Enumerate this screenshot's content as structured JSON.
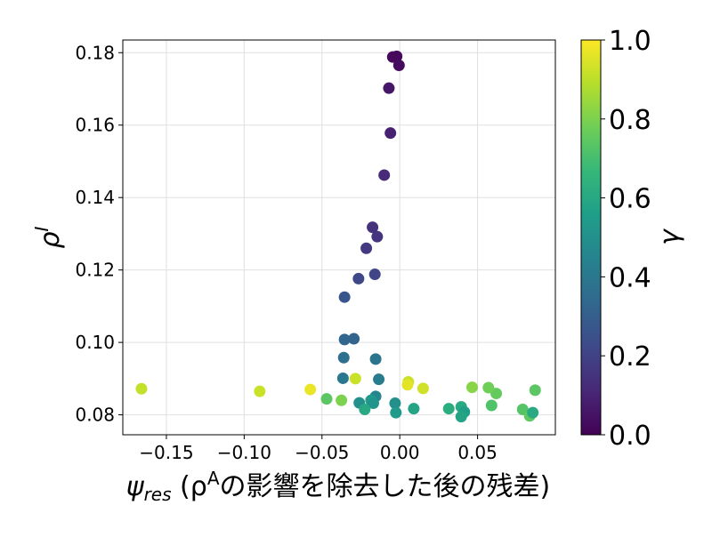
{
  "chart_data": {
    "type": "scatter",
    "title": "",
    "xlabel": "ψ_res (ρ^Aの影響を除去した後の残差)",
    "xlabel_parts": {
      "symbol": "ψ",
      "subscript": "res",
      "paren_open": " (ρ",
      "superscript": "A",
      "rest": "の影響を除去した後の残差)"
    },
    "ylabel": "ρ^I",
    "ylabel_parts": {
      "symbol": "ρ",
      "superscript": "I"
    },
    "colorbar_label": "γ",
    "xlim": [
      -0.178,
      0.1
    ],
    "ylim": [
      0.0745,
      0.1835
    ],
    "xticks": [
      -0.15,
      -0.1,
      -0.05,
      0.0,
      0.05
    ],
    "xtick_labels": [
      "−0.15",
      "−0.10",
      "−0.05",
      "0.00",
      "0.05"
    ],
    "yticks": [
      0.08,
      0.1,
      0.12,
      0.14,
      0.16,
      0.18
    ],
    "ytick_labels": [
      "0.08",
      "0.10",
      "0.12",
      "0.14",
      "0.16",
      "0.18"
    ],
    "colorbar_ticks": [
      0.0,
      0.2,
      0.4,
      0.6,
      0.8,
      1.0
    ],
    "colorbar_tick_labels": [
      "0.0",
      "0.2",
      "0.4",
      "0.6",
      "0.8",
      "1.0"
    ],
    "colormap": "viridis",
    "colormap_stops": [
      "#440154",
      "#482878",
      "#3e4989",
      "#31688e",
      "#26828e",
      "#1f9e89",
      "#35b779",
      "#6ece58",
      "#b5de2b",
      "#fde725"
    ],
    "grid": true,
    "points": [
      {
        "x": -0.002,
        "y": 0.179,
        "c": 0.02
      },
      {
        "x": -0.0045,
        "y": 0.1788,
        "c": 0.02
      },
      {
        "x": -0.0005,
        "y": 0.1765,
        "c": 0.03
      },
      {
        "x": -0.007,
        "y": 0.1702,
        "c": 0.06
      },
      {
        "x": -0.006,
        "y": 0.1578,
        "c": 0.09
      },
      {
        "x": -0.01,
        "y": 0.1462,
        "c": 0.12
      },
      {
        "x": -0.0175,
        "y": 0.1318,
        "c": 0.14
      },
      {
        "x": -0.0145,
        "y": 0.1292,
        "c": 0.15
      },
      {
        "x": -0.0215,
        "y": 0.126,
        "c": 0.17
      },
      {
        "x": -0.016,
        "y": 0.1188,
        "c": 0.21
      },
      {
        "x": -0.0265,
        "y": 0.1176,
        "c": 0.22
      },
      {
        "x": -0.0355,
        "y": 0.1125,
        "c": 0.27
      },
      {
        "x": -0.0355,
        "y": 0.1008,
        "c": 0.33
      },
      {
        "x": -0.0295,
        "y": 0.101,
        "c": 0.32
      },
      {
        "x": -0.036,
        "y": 0.0958,
        "c": 0.36
      },
      {
        "x": -0.0155,
        "y": 0.0954,
        "c": 0.38
      },
      {
        "x": -0.0365,
        "y": 0.0901,
        "c": 0.4
      },
      {
        "x": -0.0135,
        "y": 0.0898,
        "c": 0.42
      },
      {
        "x": -0.0155,
        "y": 0.0851,
        "c": 0.46
      },
      {
        "x": -0.026,
        "y": 0.0833,
        "c": 0.5
      },
      {
        "x": -0.0185,
        "y": 0.084,
        "c": 0.54
      },
      {
        "x": -0.017,
        "y": 0.0832,
        "c": 0.52
      },
      {
        "x": -0.0225,
        "y": 0.0815,
        "c": 0.6
      },
      {
        "x": -0.003,
        "y": 0.0832,
        "c": 0.5
      },
      {
        "x": -0.0025,
        "y": 0.0806,
        "c": 0.54
      },
      {
        "x": 0.009,
        "y": 0.0817,
        "c": 0.58
      },
      {
        "x": 0.0315,
        "y": 0.0817,
        "c": 0.62
      },
      {
        "x": 0.0395,
        "y": 0.0822,
        "c": 0.6
      },
      {
        "x": 0.0415,
        "y": 0.0808,
        "c": 0.56
      },
      {
        "x": 0.0395,
        "y": 0.0795,
        "c": 0.58
      },
      {
        "x": 0.059,
        "y": 0.0826,
        "c": 0.72
      },
      {
        "x": 0.062,
        "y": 0.0859,
        "c": 0.76
      },
      {
        "x": 0.079,
        "y": 0.0815,
        "c": 0.73
      },
      {
        "x": 0.0835,
        "y": 0.0797,
        "c": 0.75
      },
      {
        "x": 0.0855,
        "y": 0.0806,
        "c": 0.61
      },
      {
        "x": 0.087,
        "y": 0.0868,
        "c": 0.74
      },
      {
        "x": 0.0465,
        "y": 0.0876,
        "c": 0.82
      },
      {
        "x": 0.057,
        "y": 0.0875,
        "c": 0.78
      },
      {
        "x": -0.047,
        "y": 0.0844,
        "c": 0.74
      },
      {
        "x": -0.0375,
        "y": 0.084,
        "c": 0.8
      },
      {
        "x": -0.0285,
        "y": 0.09,
        "c": 0.92
      },
      {
        "x": 0.0055,
        "y": 0.0891,
        "c": 0.92
      },
      {
        "x": 0.005,
        "y": 0.0883,
        "c": 0.96
      },
      {
        "x": 0.015,
        "y": 0.0873,
        "c": 0.93
      },
      {
        "x": -0.0575,
        "y": 0.087,
        "c": 0.97
      },
      {
        "x": -0.09,
        "y": 0.0865,
        "c": 0.92
      },
      {
        "x": -0.166,
        "y": 0.0872,
        "c": 0.91
      }
    ]
  }
}
